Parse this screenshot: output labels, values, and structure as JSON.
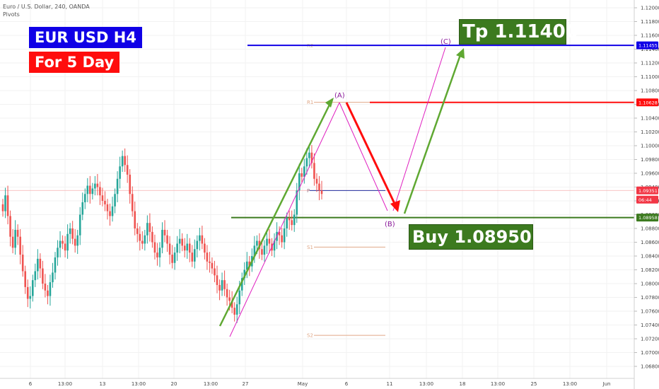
{
  "header": {
    "symbol_line": "Euro / U.S. Dollar, 240, OANDA",
    "indicator": "Pivots"
  },
  "boxes": {
    "title": "EUR USD H4",
    "period": "For 5 Day",
    "tp": "Tp 1.11400",
    "buy": "Buy  1.08950"
  },
  "chart_data": {
    "type": "candlestick",
    "title": "Euro / U.S. Dollar, 240, OANDA",
    "y_ticks": [
      "1.12000",
      "1.11800",
      "1.11600",
      "1.11400",
      "1.11200",
      "1.11000",
      "1.10800",
      "1.10600",
      "1.10400",
      "1.10200",
      "1.10000",
      "1.09800",
      "1.09600",
      "1.09400",
      "1.09200",
      "1.09000",
      "1.08800",
      "1.08600",
      "1.08400",
      "1.08200",
      "1.08000",
      "1.07800",
      "1.07600",
      "1.07400",
      "1.07200",
      "1.07000",
      "1.06800"
    ],
    "ylim": [
      1.0665,
      1.1215
    ],
    "x_ticks": [
      "6",
      "13:00",
      "13",
      "13:00",
      "20",
      "13:00",
      "27",
      "May",
      "6",
      "11",
      "13:00",
      "18",
      "13:00",
      "25",
      "13:00",
      "Jun"
    ],
    "price_tags": [
      {
        "value": "1.11455",
        "color": "#1000e6"
      },
      {
        "value": "1.10628",
        "color": "#ff0d0d"
      },
      {
        "value": "1.09351",
        "color": "#f23645"
      },
      {
        "value": "06:44",
        "color": "#f23645"
      },
      {
        "value": "1.08958",
        "color": "#3c7a1f"
      }
    ],
    "pivots": [
      {
        "name": "R2",
        "value": 1.1145,
        "color": "#d9c9a0"
      },
      {
        "name": "R1",
        "value": 1.1063,
        "color": "#e0a888"
      },
      {
        "name": "P",
        "value": 1.0935,
        "color": "#9a7a8a"
      },
      {
        "name": "S1",
        "value": 1.0853,
        "color": "#e0a888"
      },
      {
        "name": "S2",
        "value": 1.0725,
        "color": "#e0a888"
      }
    ],
    "horizontal_levels": [
      {
        "value": 1.11455,
        "color": "#1000e6"
      },
      {
        "value": 1.10628,
        "color": "#ff0d0d"
      },
      {
        "value": 1.08958,
        "color": "#3c7a1f"
      },
      {
        "value": 1.0935,
        "color": "#1f2fa0"
      }
    ],
    "wave_labels": [
      "(A)",
      "(B)",
      "(C)"
    ],
    "candles_close": [
      1.0905,
      1.0928,
      1.0898,
      1.0868,
      1.0852,
      1.0878,
      1.0868,
      1.0842,
      1.0818,
      1.0795,
      1.0778,
      1.0782,
      1.0805,
      1.0818,
      1.0836,
      1.0822,
      1.08,
      1.079,
      1.0782,
      1.0802,
      1.0816,
      1.0838,
      1.0852,
      1.0862,
      1.0858,
      1.0848,
      1.0872,
      1.088,
      1.0865,
      1.0855,
      1.087,
      1.09,
      1.0918,
      1.093,
      1.0942,
      1.093,
      1.0938,
      1.0945,
      1.094,
      1.0928,
      1.092,
      1.0915,
      1.0905,
      1.0898,
      1.0912,
      1.093,
      1.0952,
      1.097,
      1.0985,
      1.0972,
      1.0958,
      1.093,
      1.0905,
      1.088,
      1.0872,
      1.0862,
      1.0858,
      1.087,
      1.0888,
      1.0875,
      1.086,
      1.0845,
      1.0838,
      1.0852,
      1.0878,
      1.087,
      1.0858,
      1.0842,
      1.083,
      1.0845,
      1.0858,
      1.0865,
      1.0855,
      1.0848,
      1.0858,
      1.0845,
      1.0832,
      1.085,
      1.0862,
      1.087,
      1.0858,
      1.0845,
      1.0832,
      1.083,
      1.0822,
      1.0812,
      1.0798,
      1.079,
      1.0805,
      1.0792,
      1.078,
      1.0775,
      1.0765,
      1.0755,
      1.077,
      1.079,
      1.0808,
      1.082,
      1.0832,
      1.0825,
      1.084,
      1.0855,
      1.0862,
      1.085,
      1.0842,
      1.0855,
      1.0865,
      1.0858,
      1.0848,
      1.0862,
      1.0875,
      1.087,
      1.086,
      1.088,
      1.0895,
      1.0892,
      1.0885,
      1.09,
      1.0935,
      1.096,
      1.0955,
      1.097,
      1.0982,
      1.099,
      1.0975,
      1.0952,
      1.0945,
      1.0935,
      1.093
    ]
  }
}
